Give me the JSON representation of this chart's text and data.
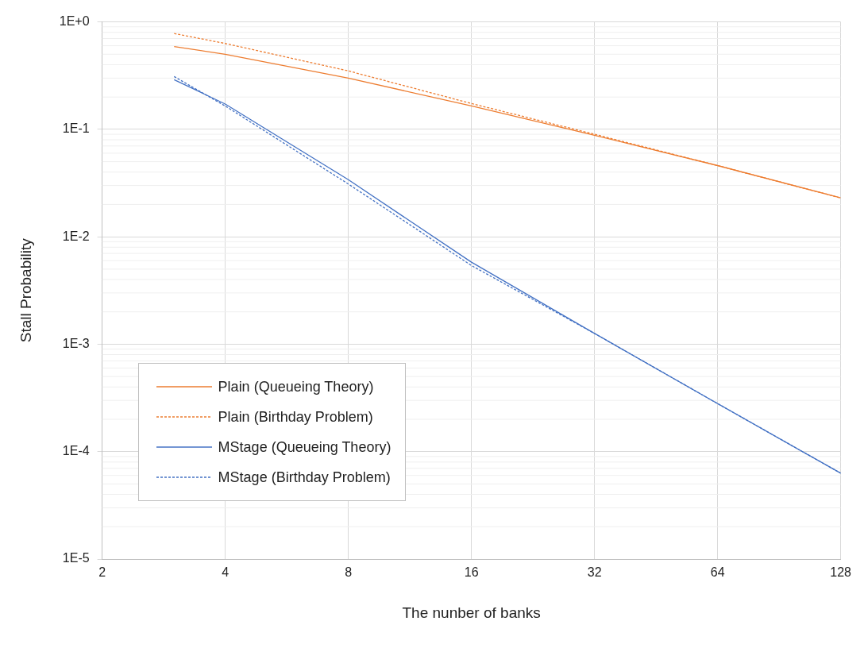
{
  "chart_data": {
    "type": "line",
    "xlabel": "The nunber of banks",
    "ylabel": "Stall Probability",
    "log": "xy",
    "x": [
      3,
      4,
      8,
      16,
      32,
      64,
      128
    ],
    "xlim": [
      2,
      128
    ],
    "xticks": [
      2,
      4,
      8,
      16,
      32,
      64,
      128
    ],
    "ylim": [
      1e-05,
      1
    ],
    "yticks": [
      {
        "value": 1e-05,
        "label": "1E-5"
      },
      {
        "value": 0.0001,
        "label": "1E-4"
      },
      {
        "value": 0.001,
        "label": "1E-3"
      },
      {
        "value": 0.01,
        "label": "1E-2"
      },
      {
        "value": 0.1,
        "label": "1E-1"
      },
      {
        "value": 1,
        "label": "1E+0"
      }
    ],
    "grid": true,
    "legend": "bottom left",
    "marker": "none",
    "series": [
      {
        "name": "Plain (Queueing Theory)",
        "color": "#ed7d31",
        "line_style": "solid",
        "values": [
          0.59,
          0.5,
          0.3,
          0.165,
          0.088,
          0.046,
          0.023
        ]
      },
      {
        "name": "Plain (Birthday Problem)",
        "color": "#ed7d31",
        "line_style": "dotted",
        "values": [
          0.78,
          0.63,
          0.35,
          0.174,
          0.09,
          0.046,
          0.023
        ]
      },
      {
        "name": "MStage (Queueing Theory)",
        "color": "#4472c4",
        "line_style": "solid",
        "values": [
          0.29,
          0.172,
          0.034,
          0.0058,
          0.00126,
          0.00028,
          6.3e-05
        ]
      },
      {
        "name": "MStage (Birthday Problem)",
        "color": "#4472c4",
        "line_style": "dotted",
        "values": [
          0.31,
          0.165,
          0.031,
          0.0054,
          0.00126,
          0.00028,
          6.3e-05
        ]
      }
    ]
  }
}
